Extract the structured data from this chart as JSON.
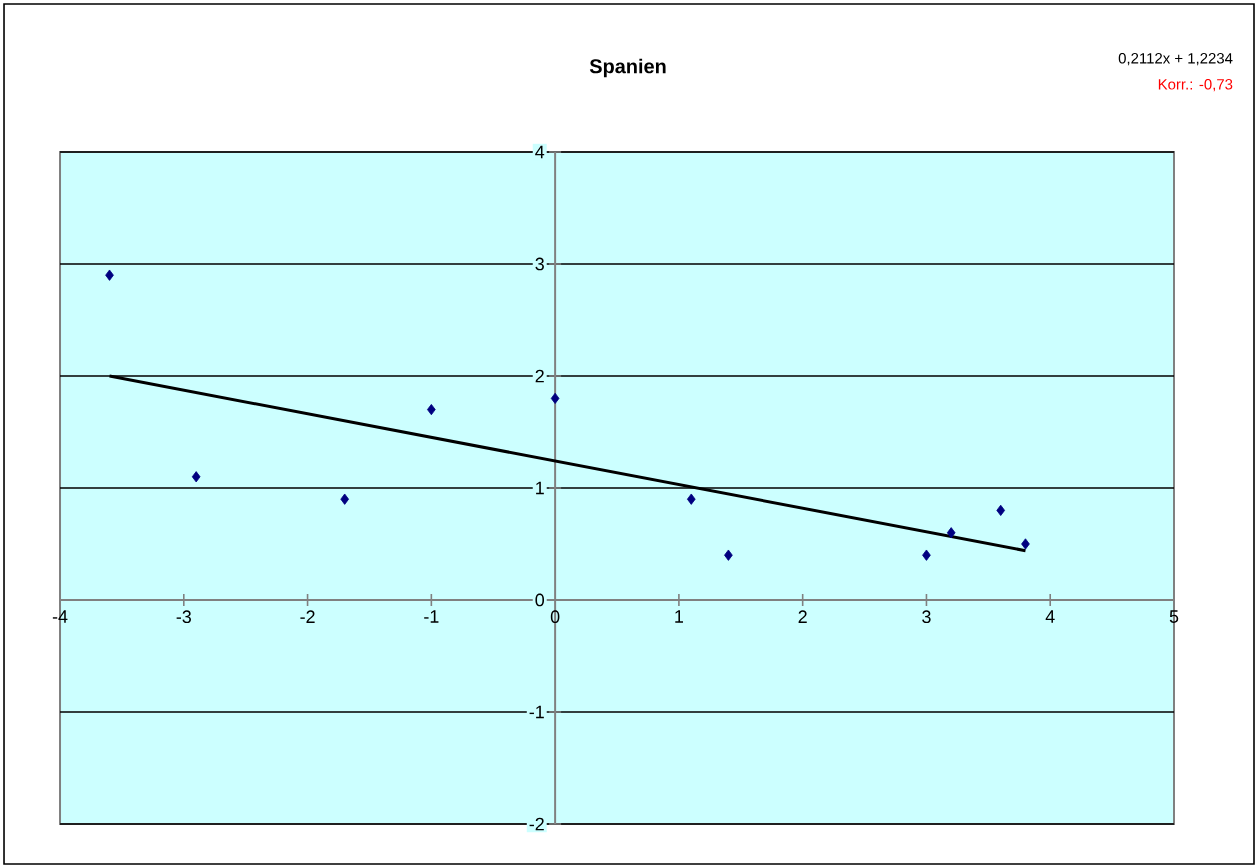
{
  "chart_data": {
    "type": "scatter",
    "title": "Spanien",
    "annotations": [
      "0,2112x + 1,2234",
      "Korr.: -0,73"
    ],
    "series": [
      {
        "type": "scatter",
        "color": "#000080",
        "marker": "diamond",
        "x": [
          -3.6,
          -2.9,
          -1.7,
          -1.0,
          0.0,
          1.1,
          1.4,
          3.0,
          3.2,
          3.6,
          3.8
        ],
        "values": [
          2.9,
          1.1,
          0.9,
          1.7,
          1.8,
          0.9,
          0.4,
          0.4,
          0.6,
          0.8,
          0.5
        ]
      },
      {
        "type": "line",
        "color": "#000000",
        "marker": "none",
        "x": [
          -3.6,
          3.8
        ],
        "values": [
          2.0,
          0.44
        ]
      }
    ],
    "xlim": [
      -4,
      5
    ],
    "ylim": [
      -2,
      4
    ],
    "xticks": [
      -4,
      -3,
      -2,
      -1,
      0,
      1,
      2,
      3,
      4,
      5
    ],
    "yticks": [
      -2,
      -1,
      0,
      1,
      2,
      3,
      4
    ],
    "grid": "y"
  }
}
